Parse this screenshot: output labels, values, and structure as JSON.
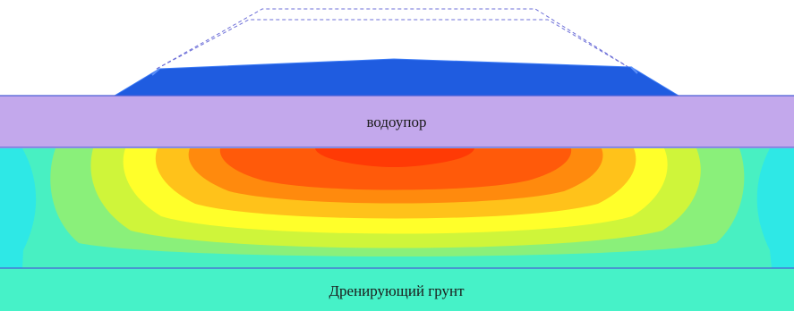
{
  "layers": {
    "aquiclude_label": "водоупор",
    "drainage_label": "Дренирующий грунт"
  },
  "colors": {
    "background": "#ffffff",
    "embankment": "#1f5ce0",
    "embankment_edge": "#3b7af5",
    "aquiclude": "#c3a8ec",
    "layer_line": "#4a5fd6",
    "drainage": "#46f2c8",
    "contour_bands": [
      "#2ee8e6",
      "#48f0c2",
      "#8af07a",
      "#cff53a",
      "#ffff2a",
      "#ffc21a",
      "#ff8a0d",
      "#ff5a0a",
      "#ff3a05"
    ],
    "outline_dash": "#6d6fd8"
  }
}
